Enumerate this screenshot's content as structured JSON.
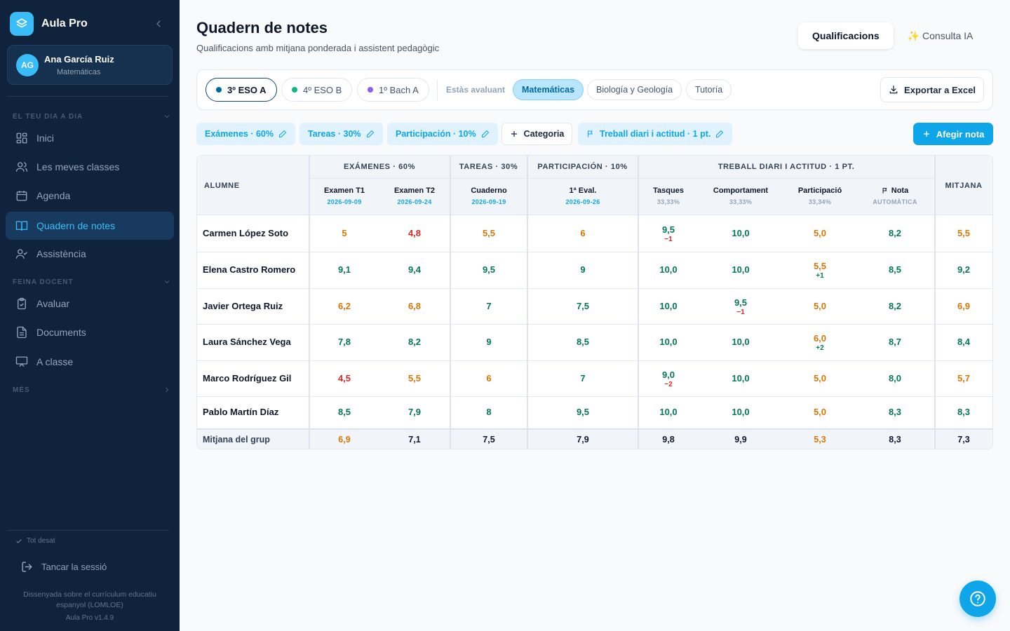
{
  "sidebar": {
    "brand": "Aula Pro",
    "user": {
      "initials": "AG",
      "name": "Ana García Ruiz",
      "subject": "Matemáticas"
    },
    "sections": {
      "day": "EL TEU DIA A DIA",
      "work": "FEINA DOCENT",
      "more": "MÉS"
    },
    "items": [
      "Inici",
      "Les meves classes",
      "Agenda",
      "Quadern de notes",
      "Assistència",
      "Avaluar",
      "Documents",
      "A classe"
    ],
    "saved": "Tot desat",
    "logout": "Tancar la sessió",
    "footer": "Dissenyada sobre el currículum educatiu espanyol (LOMLOE)",
    "version": "Aula Pro v1.4.9"
  },
  "header": {
    "title": "Quadern de notes",
    "subtitle": "Qualificacions amb mitjana ponderada i assistent pedagògic",
    "tabs": [
      "Qualificacions",
      "✨ Consulta IA"
    ]
  },
  "filters": {
    "groups": [
      {
        "label": "3º ESO A",
        "color": "#0369a1"
      },
      {
        "label": "4º ESO B",
        "color": "#10b981"
      },
      {
        "label": "1º Bach A",
        "color": "#8b5cf6"
      }
    ],
    "evaluating_label": "Estàs avaluant",
    "subjects": [
      "Matemáticas",
      "Biología y Geología",
      "Tutoría"
    ],
    "export": "Exportar a Excel"
  },
  "categories": {
    "items": [
      "Exámenes · 60%",
      "Tareas · 30%",
      "Participación · 10%"
    ],
    "add": "Categoria",
    "daily": "Treball diari i actitud · 1 pt.",
    "add_note": "Afegir nota"
  },
  "table": {
    "student_header": "ALUMNE",
    "average_header": "MITJANA",
    "groups": [
      "EXÁMENES · 60%",
      "TAREAS · 30%",
      "PARTICIPACIÓN · 10%",
      "TREBALL DIARI I ACTITUD · 1 PT."
    ],
    "columns": [
      {
        "title": "Examen T1",
        "sub": "2026-09-09"
      },
      {
        "title": "Examen T2",
        "sub": "2026-09-24"
      },
      {
        "title": "Cuaderno",
        "sub": "2026-09-19"
      },
      {
        "title": "1ª Eval.",
        "sub": "2026-09-26"
      },
      {
        "title": "Tasques",
        "sub": "33,33%"
      },
      {
        "title": "Comportament",
        "sub": "33,33%"
      },
      {
        "title": "Participació",
        "sub": "33,34%"
      },
      {
        "title": "Nota",
        "sub": "AUTOMÀTICA"
      }
    ],
    "rows": [
      {
        "name": "Carmen López Soto",
        "cells": [
          {
            "v": "5",
            "c": "o"
          },
          {
            "v": "4,8",
            "c": "r"
          },
          {
            "v": "5,5",
            "c": "o"
          },
          {
            "v": "6",
            "c": "o"
          },
          {
            "v": "9,5",
            "c": "g",
            "adj": "−1",
            "ac": "r"
          },
          {
            "v": "10,0",
            "c": "g"
          },
          {
            "v": "5,0",
            "c": "o"
          },
          {
            "v": "8,2",
            "c": "g"
          },
          {
            "v": "5,5",
            "c": "o"
          }
        ]
      },
      {
        "name": "Elena Castro Romero",
        "cells": [
          {
            "v": "9,1",
            "c": "g"
          },
          {
            "v": "9,4",
            "c": "g"
          },
          {
            "v": "9,5",
            "c": "g"
          },
          {
            "v": "9",
            "c": "g"
          },
          {
            "v": "10,0",
            "c": "g"
          },
          {
            "v": "10,0",
            "c": "g"
          },
          {
            "v": "5,5",
            "c": "o",
            "adj": "+1",
            "ac": "g"
          },
          {
            "v": "8,5",
            "c": "g"
          },
          {
            "v": "9,2",
            "c": "g"
          }
        ]
      },
      {
        "name": "Javier Ortega Ruiz",
        "cells": [
          {
            "v": "6,2",
            "c": "o"
          },
          {
            "v": "6,8",
            "c": "o"
          },
          {
            "v": "7",
            "c": "g"
          },
          {
            "v": "7,5",
            "c": "g"
          },
          {
            "v": "10,0",
            "c": "g"
          },
          {
            "v": "9,5",
            "c": "g",
            "adj": "−1",
            "ac": "r"
          },
          {
            "v": "5,0",
            "c": "o"
          },
          {
            "v": "8,2",
            "c": "g"
          },
          {
            "v": "6,9",
            "c": "o"
          }
        ]
      },
      {
        "name": "Laura Sánchez Vega",
        "cells": [
          {
            "v": "7,8",
            "c": "g"
          },
          {
            "v": "8,2",
            "c": "g"
          },
          {
            "v": "9",
            "c": "g"
          },
          {
            "v": "8,5",
            "c": "g"
          },
          {
            "v": "10,0",
            "c": "g"
          },
          {
            "v": "10,0",
            "c": "g"
          },
          {
            "v": "6,0",
            "c": "o",
            "adj": "+2",
            "ac": "g"
          },
          {
            "v": "8,7",
            "c": "g"
          },
          {
            "v": "8,4",
            "c": "g"
          }
        ]
      },
      {
        "name": "Marco Rodríguez Gil",
        "cells": [
          {
            "v": "4,5",
            "c": "r"
          },
          {
            "v": "5,5",
            "c": "o"
          },
          {
            "v": "6",
            "c": "o"
          },
          {
            "v": "7",
            "c": "g"
          },
          {
            "v": "9,0",
            "c": "g",
            "adj": "−2",
            "ac": "r"
          },
          {
            "v": "10,0",
            "c": "g"
          },
          {
            "v": "5,0",
            "c": "o"
          },
          {
            "v": "8,0",
            "c": "g"
          },
          {
            "v": "5,7",
            "c": "o"
          }
        ]
      },
      {
        "name": "Pablo Martín Díaz",
        "cells": [
          {
            "v": "8,5",
            "c": "g"
          },
          {
            "v": "7,9",
            "c": "g"
          },
          {
            "v": "8",
            "c": "g"
          },
          {
            "v": "9,5",
            "c": "g"
          },
          {
            "v": "10,0",
            "c": "g"
          },
          {
            "v": "10,0",
            "c": "g"
          },
          {
            "v": "5,0",
            "c": "o"
          },
          {
            "v": "8,3",
            "c": "g"
          },
          {
            "v": "8,3",
            "c": "g"
          }
        ]
      }
    ],
    "group_average": {
      "label": "Mitjana del grup",
      "cells": [
        {
          "v": "6,9",
          "c": "o"
        },
        {
          "v": "7,1",
          "c": "n"
        },
        {
          "v": "7,5",
          "c": "n"
        },
        {
          "v": "7,9",
          "c": "n"
        },
        {
          "v": "9,8",
          "c": "n"
        },
        {
          "v": "9,9",
          "c": "n"
        },
        {
          "v": "5,3",
          "c": "o"
        },
        {
          "v": "8,3",
          "c": "n"
        },
        {
          "v": "7,3",
          "c": "n"
        }
      ]
    }
  },
  "colors": {
    "accent": "#0ea5e9",
    "sidebar": "#10233d",
    "good": "#047857",
    "warn": "#d97706",
    "bad": "#dc2626"
  }
}
